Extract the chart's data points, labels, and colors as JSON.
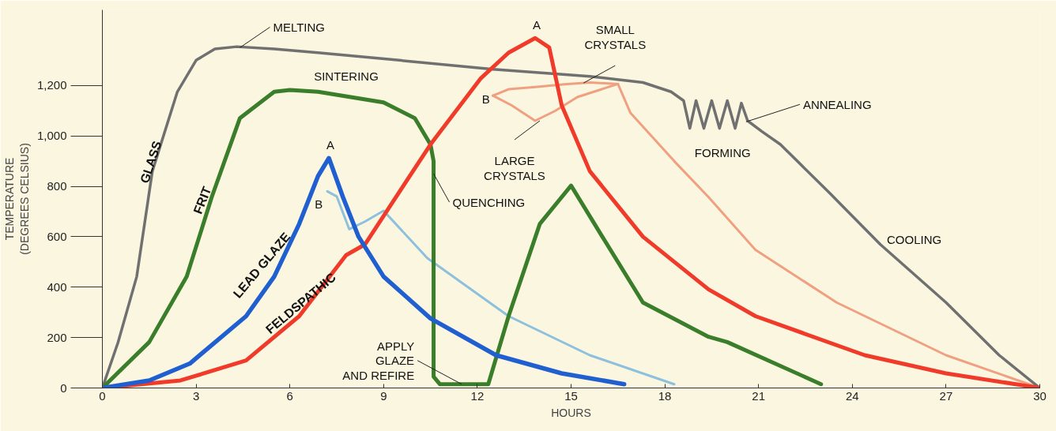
{
  "chart_data": {
    "type": "line",
    "xlabel": "HOURS",
    "ylabel": "TEMPERATURE\n(DEGREES CELSIUS)",
    "xlim": [
      0,
      30
    ],
    "ylim": [
      0,
      1500
    ],
    "xticks": [
      0,
      3,
      6,
      9,
      12,
      15,
      18,
      21,
      24,
      27,
      30
    ],
    "yticks": [
      0,
      200,
      400,
      600,
      800,
      {
        "value": 1000,
        "label": "1,000"
      },
      {
        "value": 1200,
        "label": "1,200"
      }
    ],
    "series": [
      {
        "name": "GLASS",
        "color": "#707070",
        "x": [
          0,
          0.5,
          1.1,
          1.6,
          2.4,
          3.0,
          3.6,
          4.3,
          5.5,
          6.9,
          9.5,
          12.5,
          15.6,
          17.3,
          18.2,
          18.6,
          18.8,
          19.0,
          19.25,
          19.5,
          19.75,
          20.0,
          20.25,
          20.45,
          20.65,
          21.1,
          21.7,
          23.3,
          24.9,
          27.0,
          28.7,
          30
        ],
        "values": [
          0,
          180,
          442,
          860,
          1175,
          1300,
          1345,
          1354,
          1345,
          1330,
          1300,
          1264,
          1236,
          1212,
          1175,
          1140,
          1030,
          1140,
          1030,
          1140,
          1030,
          1140,
          1030,
          1130,
          1060,
          1018,
          966,
          770,
          569,
          339,
          130,
          0
        ]
      },
      {
        "name": "FRIT",
        "color": "#3a7d2a",
        "x": [
          0,
          1.5,
          2.7,
          3.5,
          4.4,
          5.5,
          6.0,
          6.9,
          9.0,
          10.0,
          10.5,
          10.6,
          10.6,
          10.8,
          12.35,
          13.0,
          14.0,
          15.0,
          16.0,
          17.3,
          19.4,
          20.0,
          23.0
        ],
        "values": [
          0,
          182,
          442,
          757,
          1070,
          1175,
          1182,
          1175,
          1133,
          1070,
          966,
          900,
          45,
          15,
          15,
          285,
          651,
          803,
          600,
          339,
          203,
          182,
          15
        ]
      },
      {
        "name": "LEAD GLAZE",
        "color": "#1f5fd0",
        "x": [
          0,
          1.5,
          2.8,
          4.6,
          5.5,
          6.3,
          6.9,
          7.25,
          7.7,
          8.2,
          9.0,
          10.5,
          12.6,
          14.7,
          16.7
        ],
        "values": [
          0,
          30,
          97,
          285,
          442,
          651,
          840,
          912,
          757,
          600,
          442,
          276,
          130,
          58,
          15
        ]
      },
      {
        "name": "FELDSPATHIC",
        "color": "#f03a2a",
        "x": [
          0,
          2.5,
          4.6,
          6.3,
          7.8,
          8.4,
          10.5,
          12.1,
          13.0,
          13.85,
          14.3,
          14.7,
          15.6,
          17.3,
          19.4,
          20.9,
          24.4,
          27.0,
          30
        ],
        "values": [
          0,
          30,
          109,
          285,
          527,
          569,
          966,
          1227,
          1330,
          1388,
          1351,
          1121,
          860,
          600,
          391,
          285,
          130,
          58,
          0
        ]
      },
      {
        "color": "#8cc0dc",
        "x": [
          7.2,
          7.5,
          7.9,
          8.4,
          9.0,
          10.4,
          13.0,
          15.6,
          18.3
        ],
        "values": [
          780,
          760,
          630,
          660,
          703,
          515,
          285,
          130,
          15
        ]
      },
      {
        "color": "#f0a080",
        "x": [
          12.5,
          13.0,
          13.85,
          14.8,
          15.6,
          16.5,
          16.9,
          18.3,
          19.4,
          20.9,
          23.5,
          27.0,
          30
        ],
        "values": [
          1160,
          1185,
          1194,
          1205,
          1212,
          1206,
          1091,
          900,
          757,
          548,
          339,
          130,
          0
        ]
      },
      {
        "color": "#f0a080",
        "x": [
          12.5,
          13.1,
          13.85,
          14.5,
          15.2,
          16.5
        ],
        "values": [
          1160,
          1121,
          1060,
          1100,
          1154,
          1206
        ]
      }
    ],
    "annotations": [
      {
        "text": "MELTING",
        "x": 4.4,
        "y": 1350
      },
      {
        "text": "SINTERING",
        "x": 7.5,
        "y": 1180
      },
      {
        "text": "A",
        "x": 7.25,
        "y": 912
      },
      {
        "text": "B",
        "x": 7.2,
        "y": 780
      },
      {
        "text": "A",
        "x": 13.85,
        "y": 1388
      },
      {
        "text": "B",
        "x": 12.5,
        "y": 1160
      },
      {
        "text": "SMALL\nCRYSTALS",
        "x": 15.4,
        "y": 1210
      },
      {
        "text": "LARGE\nCRYSTALS",
        "x": 14.0,
        "y": 1060
      },
      {
        "text": "QUENCHING",
        "x": 10.6,
        "y": 850
      },
      {
        "text": "APPLY\nGLAZE\nAND REFIRE",
        "x": 11.5,
        "y": 15
      },
      {
        "text": "FORMING",
        "x": 19.75,
        "y": 1030
      },
      {
        "text": "ANNEALING",
        "x": 20.6,
        "y": 1056
      },
      {
        "text": "COOLING",
        "x": 24.6,
        "y": 600
      }
    ]
  }
}
